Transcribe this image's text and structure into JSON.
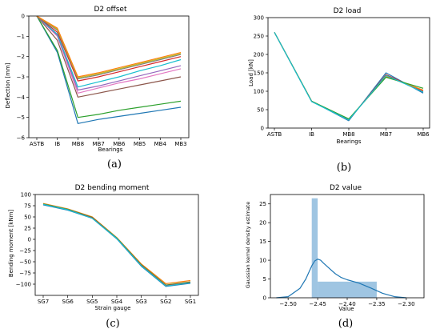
{
  "chart_data": [
    {
      "type": "line",
      "title": "D2 offset",
      "xlabel": "Bearings",
      "ylabel": "Deflection [mm]",
      "caption": "(a)",
      "categories": [
        "ASTB",
        "IB",
        "MB8",
        "MB7",
        "MB6",
        "MB5",
        "MB4",
        "MB3"
      ],
      "ylim": [
        -6,
        0
      ],
      "yticks": [
        "0",
        "−1",
        "−2",
        "−3",
        "−4",
        "−5",
        "−6"
      ],
      "yticks_values": [
        0,
        -1,
        -2,
        -3,
        -4,
        -5,
        -6
      ],
      "series": [
        {
          "color": "#1f77b4",
          "values": [
            0,
            -1.8,
            -5.3,
            -5.1,
            -4.95,
            -4.8,
            -4.65,
            -4.5
          ]
        },
        {
          "color": "#2ca02c",
          "values": [
            0,
            -1.7,
            -5.0,
            -4.85,
            -4.65,
            -4.5,
            -4.35,
            -4.2
          ]
        },
        {
          "color": "#8c564b",
          "values": [
            0,
            -1.2,
            -4.0,
            -3.8,
            -3.6,
            -3.4,
            -3.2,
            -3.0
          ]
        },
        {
          "color": "#e377c2",
          "values": [
            0,
            -1.0,
            -3.8,
            -3.55,
            -3.3,
            -3.1,
            -2.85,
            -2.6
          ]
        },
        {
          "color": "#9467bd",
          "values": [
            0,
            -0.95,
            -3.65,
            -3.45,
            -3.2,
            -2.95,
            -2.7,
            -2.45
          ]
        },
        {
          "color": "#17becf",
          "values": [
            0,
            -0.9,
            -3.5,
            -3.25,
            -3.0,
            -2.7,
            -2.45,
            -2.15
          ]
        },
        {
          "color": "#d62728",
          "values": [
            0,
            -0.8,
            -3.2,
            -3.0,
            -2.75,
            -2.5,
            -2.25,
            -2.0
          ]
        },
        {
          "color": "#7f7f7f",
          "values": [
            0,
            -0.7,
            -3.1,
            -2.9,
            -2.65,
            -2.4,
            -2.15,
            -1.9
          ]
        },
        {
          "color": "#bcbd22",
          "values": [
            0,
            -0.65,
            -3.05,
            -2.85,
            -2.6,
            -2.35,
            -2.1,
            -1.85
          ]
        },
        {
          "color": "#ff7f0e",
          "values": [
            0,
            -0.6,
            -3.0,
            -2.8,
            -2.55,
            -2.3,
            -2.05,
            -1.8
          ]
        }
      ],
      "grid": false
    },
    {
      "type": "line",
      "title": "D2 load",
      "xlabel": "Bearings",
      "ylabel": "Load [kN]",
      "caption": "(b)",
      "categories": [
        "ASTB",
        "IB",
        "MB8",
        "MB7",
        "MB6"
      ],
      "ylim": [
        0,
        300
      ],
      "yticks": [
        "0",
        "50",
        "100",
        "150",
        "200",
        "250",
        "300"
      ],
      "yticks_values": [
        0,
        50,
        100,
        150,
        200,
        250,
        300
      ],
      "series": [
        {
          "color": "#1f77b4",
          "values": [
            260,
            73,
            20,
            150,
            95
          ]
        },
        {
          "color": "#d62728",
          "values": [
            260,
            73,
            22,
            145,
            100
          ]
        },
        {
          "color": "#ff7f0e",
          "values": [
            260,
            73,
            24,
            140,
            103
          ]
        },
        {
          "color": "#2ca02c",
          "values": [
            260,
            73,
            25,
            138,
            108
          ]
        },
        {
          "color": "#17becf",
          "values": [
            260,
            72,
            22,
            143,
            98
          ]
        }
      ],
      "grid": false
    },
    {
      "type": "line",
      "title": "D2 bending moment",
      "xlabel": "Strain gauge",
      "ylabel": "Bending moment [kNm]",
      "caption": "(c)",
      "categories": [
        "SG7",
        "SG6",
        "SG5",
        "SG4",
        "SG3",
        "SG2",
        "SG1"
      ],
      "ylim": [
        -125,
        100
      ],
      "yticks": [
        "100",
        "75",
        "50",
        "25",
        "0",
        "−25",
        "−50",
        "−75",
        "−100"
      ],
      "yticks_values": [
        100,
        75,
        50,
        25,
        0,
        -25,
        -50,
        -75,
        -100
      ],
      "series": [
        {
          "color": "#ff7f0e",
          "values": [
            80,
            68,
            50,
            4,
            -55,
            -99,
            -92
          ]
        },
        {
          "color": "#2ca02c",
          "values": [
            79,
            67,
            49,
            3,
            -57,
            -102,
            -95
          ]
        },
        {
          "color": "#d62728",
          "values": [
            78,
            66,
            48,
            2,
            -58,
            -103,
            -96
          ]
        },
        {
          "color": "#1f77b4",
          "values": [
            77,
            65,
            47,
            1,
            -60,
            -105,
            -98
          ]
        },
        {
          "color": "#17becf",
          "values": [
            78,
            66,
            47,
            2,
            -59,
            -104,
            -97
          ]
        }
      ],
      "grid": false
    },
    {
      "type": "bar",
      "title": "D2 value",
      "xlabel": "Value",
      "ylabel": "Gaussian kernel density estimate",
      "caption": "(d)",
      "xlim": [
        -2.53,
        -2.27
      ],
      "ylim": [
        0,
        27.5
      ],
      "xticks": [
        "−2.50",
        "−2.45",
        "−2.40",
        "−2.35",
        "−2.30"
      ],
      "xticks_values": [
        -2.5,
        -2.45,
        -2.4,
        -2.35,
        -2.3
      ],
      "yticks": [
        "0",
        "5",
        "10",
        "15",
        "20",
        "25"
      ],
      "yticks_values": [
        0,
        5,
        10,
        15,
        20,
        25
      ],
      "bar_color": "#7fb2d8",
      "line_color": "#1f77b4",
      "bins": [
        {
          "x0": -2.46,
          "x1": -2.45,
          "height": 26.5
        },
        {
          "x0": -2.45,
          "x1": -2.35,
          "height": 4.3
        }
      ],
      "kde": {
        "x": [
          -2.52,
          -2.5,
          -2.48,
          -2.47,
          -2.46,
          -2.455,
          -2.45,
          -2.445,
          -2.44,
          -2.43,
          -2.42,
          -2.41,
          -2.4,
          -2.38,
          -2.36,
          -2.34,
          -2.32,
          -2.3
        ],
        "y": [
          0.0,
          0.3,
          2.5,
          5.0,
          8.5,
          9.8,
          10.3,
          10.0,
          9.2,
          7.8,
          6.4,
          5.4,
          4.8,
          3.9,
          2.6,
          1.2,
          0.3,
          0.0
        ]
      },
      "grid": false
    }
  ]
}
